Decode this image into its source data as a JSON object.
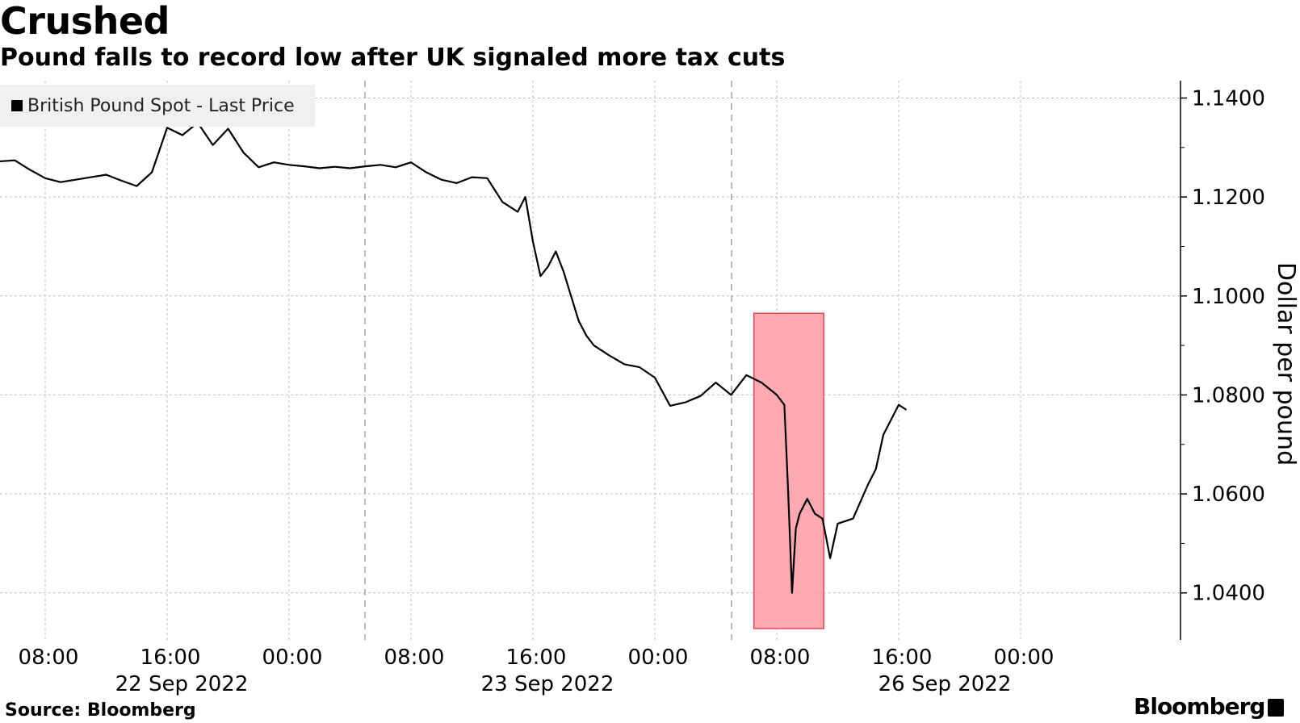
{
  "title": "Crushed",
  "subtitle": "Pound falls to record low after UK signaled more tax cuts",
  "source": "Source: Bloomberg",
  "brand": "Bloomberg",
  "colors": {
    "line": "#000000",
    "highlight": "#ff9aa6",
    "highlight_border": "#e0485a",
    "grid": "#bfbfbf"
  },
  "chart_data": {
    "type": "line",
    "title": "Crushed",
    "subtitle": "Pound falls to record low after UK signaled more tax cuts",
    "xlabel": "",
    "ylabel": "Dollar per pound",
    "ylim": [
      1.0305,
      1.1435
    ],
    "y_ticks": [
      "1.1400",
      "1.1200",
      "1.1000",
      "1.0800",
      "1.0600",
      "1.0400"
    ],
    "x_ticks": [
      "08:00",
      "16:00",
      "00:00",
      "08:00",
      "16:00",
      "00:00",
      "08:00",
      "16:00",
      "00:00"
    ],
    "date_labels": [
      "22 Sep 2022",
      "23 Sep 2022",
      "26 Sep 2022"
    ],
    "legend": {
      "position": "top-left",
      "entries": [
        "British Pound Spot - Last Price"
      ]
    },
    "grid": true,
    "highlight": {
      "from": "26 Sep 2022 06:30",
      "to": "26 Sep 2022 11:05",
      "y_range": [
        1.0328,
        1.0965
      ]
    },
    "series": [
      {
        "name": "British Pound Spot - Last Price",
        "x": [
          "22 Sep 05:00",
          "22 Sep 06:00",
          "22 Sep 07:00",
          "22 Sep 08:00",
          "22 Sep 09:00",
          "22 Sep 10:00",
          "22 Sep 11:00",
          "22 Sep 12:00",
          "22 Sep 13:00",
          "22 Sep 14:00",
          "22 Sep 15:00",
          "22 Sep 16:00",
          "22 Sep 17:00",
          "22 Sep 18:00",
          "22 Sep 19:00",
          "22 Sep 20:00",
          "22 Sep 21:00",
          "22 Sep 22:00",
          "22 Sep 23:00",
          "23 Sep 00:00",
          "23 Sep 01:00",
          "23 Sep 02:00",
          "23 Sep 03:00",
          "23 Sep 04:00",
          "23 Sep 05:00",
          "23 Sep 06:00",
          "23 Sep 07:00",
          "23 Sep 08:00",
          "23 Sep 09:00",
          "23 Sep 10:00",
          "23 Sep 11:00",
          "23 Sep 12:00",
          "23 Sep 13:00",
          "23 Sep 14:00",
          "23 Sep 15:00",
          "23 Sep 15:30",
          "23 Sep 16:00",
          "23 Sep 16:30",
          "23 Sep 17:00",
          "23 Sep 17:30",
          "23 Sep 18:00",
          "23 Sep 18:30",
          "23 Sep 19:00",
          "23 Sep 19:30",
          "23 Sep 20:00",
          "23 Sep 21:00",
          "23 Sep 22:00",
          "23 Sep 23:00",
          "26 Sep 00:00",
          "26 Sep 01:00",
          "26 Sep 02:00",
          "26 Sep 03:00",
          "26 Sep 04:00",
          "26 Sep 05:00",
          "26 Sep 06:00",
          "26 Sep 07:00",
          "26 Sep 08:00",
          "26 Sep 08:30",
          "26 Sep 08:45",
          "26 Sep 09:00",
          "26 Sep 09:15",
          "26 Sep 09:30",
          "26 Sep 10:00",
          "26 Sep 10:30",
          "26 Sep 11:00",
          "26 Sep 11:30",
          "26 Sep 12:00",
          "26 Sep 13:00",
          "26 Sep 14:00",
          "26 Sep 14:30",
          "26 Sep 15:00",
          "26 Sep 15:30",
          "26 Sep 16:00",
          "26 Sep 16:30"
        ],
        "values": [
          1.1272,
          1.1274,
          1.1255,
          1.1238,
          1.123,
          1.1235,
          1.124,
          1.1245,
          1.1233,
          1.1222,
          1.125,
          1.134,
          1.1325,
          1.135,
          1.1305,
          1.1338,
          1.129,
          1.126,
          1.127,
          1.1265,
          1.1262,
          1.1258,
          1.1261,
          1.1258,
          1.1262,
          1.1265,
          1.126,
          1.127,
          1.125,
          1.1235,
          1.1228,
          1.124,
          1.1238,
          1.119,
          1.117,
          1.12,
          1.111,
          1.104,
          1.106,
          1.109,
          1.105,
          1.1,
          1.095,
          1.092,
          1.09,
          1.088,
          1.0862,
          1.0856,
          1.0835,
          1.0778,
          1.0785,
          1.0798,
          1.0825,
          1.08,
          1.084,
          1.0825,
          1.08,
          1.078,
          1.06,
          1.04,
          1.053,
          1.056,
          1.059,
          1.056,
          1.055,
          1.047,
          1.054,
          1.055,
          1.062,
          1.065,
          1.072,
          1.075,
          1.078,
          1.077
        ]
      }
    ]
  }
}
